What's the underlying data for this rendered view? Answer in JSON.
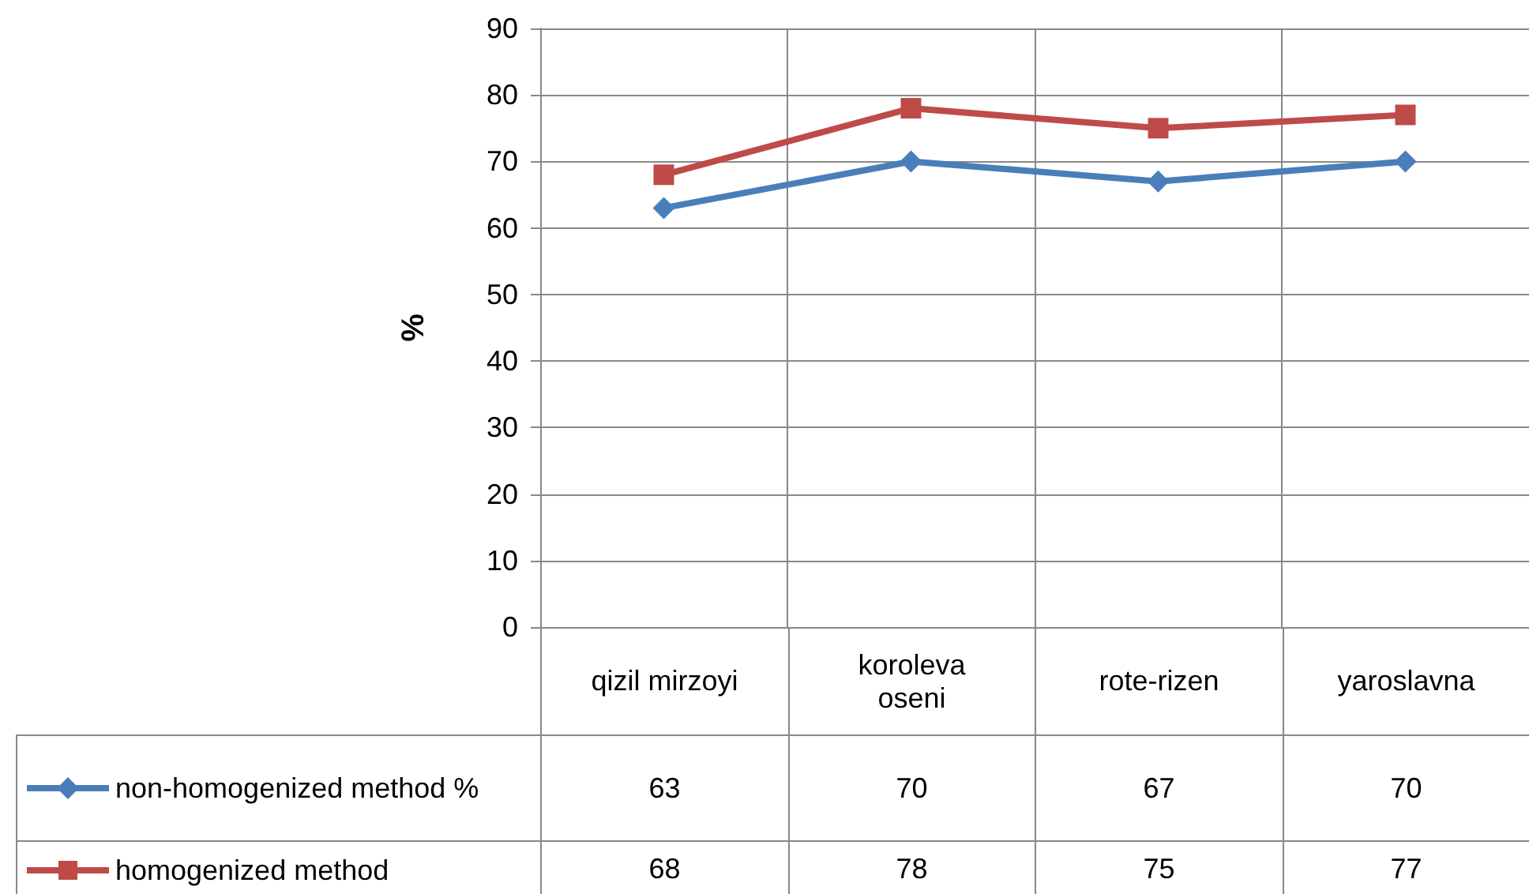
{
  "chart_data": {
    "type": "line",
    "ylabel": "%",
    "categories": [
      "qizil mirzoyi",
      "koroleva oseni",
      "rote-rizen",
      "yaroslavna"
    ],
    "series": [
      {
        "name": "non-homogenized method %",
        "color": "#4a7ebb",
        "marker": "diamond",
        "values": [
          63,
          70,
          67,
          70
        ]
      },
      {
        "name": "homogenized method",
        "color": "#be4b48",
        "marker": "square",
        "values": [
          68,
          78,
          75,
          77
        ]
      }
    ],
    "ylim": [
      0,
      90
    ],
    "yticks": [
      0,
      10,
      20,
      30,
      40,
      50,
      60,
      70,
      80,
      90
    ],
    "grid": true,
    "legend": "bottom",
    "data_labels": true,
    "line_style": "solid"
  }
}
